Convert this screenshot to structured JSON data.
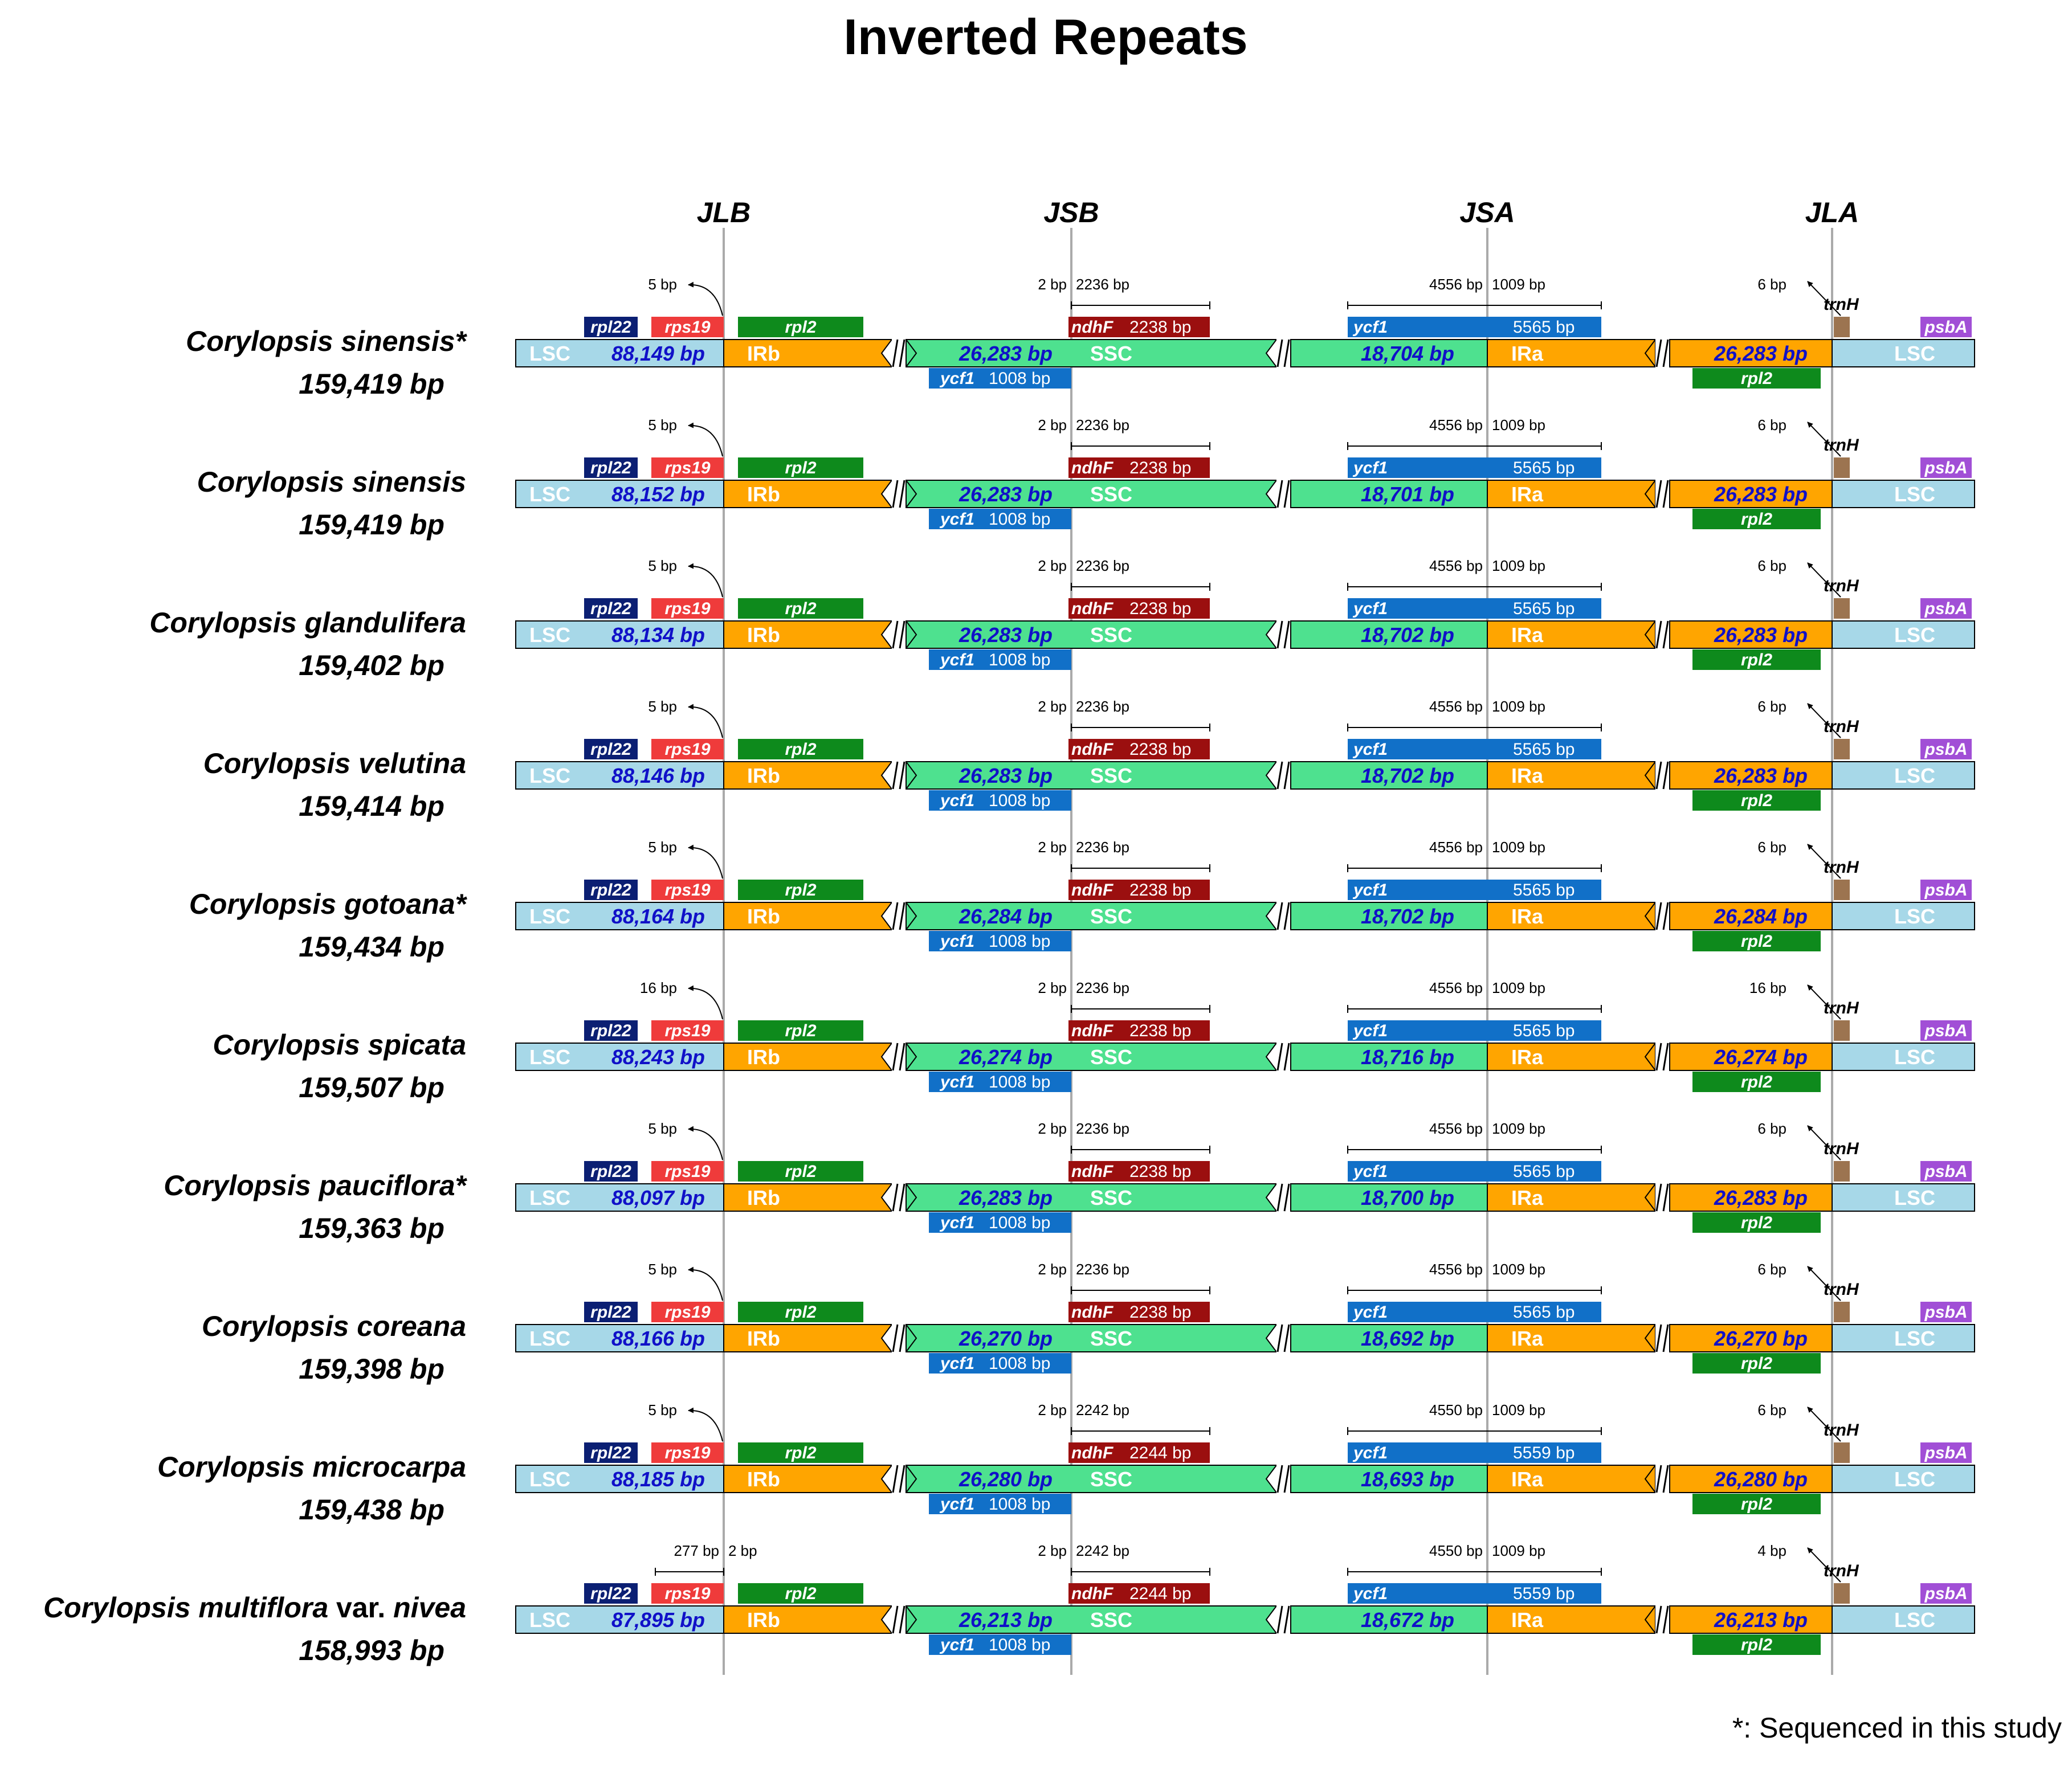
{
  "title": "Inverted Repeats",
  "junctions": [
    "JLB",
    "JSB",
    "JSA",
    "JLA"
  ],
  "region_labels": {
    "lsc": "LSC",
    "irb": "IRb",
    "ssc": "SSC",
    "ira": "IRa"
  },
  "gene_names": {
    "rpl22": "rpl22",
    "rps19": "rps19",
    "rpl2": "rpl2",
    "ndhF": "ndhF",
    "ycf1": "ycf1",
    "trnH": "trnH",
    "psbA": "psbA"
  },
  "colors": {
    "lsc": "#a7d8e8",
    "ir": "#ffa500",
    "ssc": "#4ee18f",
    "rpl22": "#0b1f73",
    "rps19": "#ef3b3b",
    "rpl2": "#0e8a1c",
    "ndhF": "#9b0f0f",
    "ycf1": "#1170c8",
    "trnH": "#9c7450",
    "psbA": "#a14fd6",
    "junction_line": "#aaaaaa",
    "seg_number": "#1010c8"
  },
  "footnote": "*: Sequenced in this study",
  "species": [
    {
      "name": "Corylopsis sinensis*",
      "genome": "159,419 bp",
      "lsc": "88,149 bp",
      "irb": "26,283 bp",
      "ssc": "18,704 bp",
      "ira": "26,283 bp",
      "jlb_left": "5 bp",
      "ndhF_gap": "2 bp",
      "ndhF_over": "2236 bp",
      "ndhF_len": "2238 bp",
      "ycf1_left": "4556 bp",
      "ycf1_right": "1009 bp",
      "ycf1_len": "5565 bp",
      "ycf1_frag": "1008 bp",
      "trnH_dist": "6 bp"
    },
    {
      "name": "Corylopsis sinensis",
      "genome": "159,419 bp",
      "lsc": "88,152 bp",
      "irb": "26,283 bp",
      "ssc": "18,701 bp",
      "ira": "26,283 bp",
      "jlb_left": "5 bp",
      "ndhF_gap": "2 bp",
      "ndhF_over": "2236 bp",
      "ndhF_len": "2238 bp",
      "ycf1_left": "4556 bp",
      "ycf1_right": "1009 bp",
      "ycf1_len": "5565 bp",
      "ycf1_frag": "1008 bp",
      "trnH_dist": "6 bp"
    },
    {
      "name": "Corylopsis glandulifera",
      "genome": "159,402 bp",
      "lsc": "88,134 bp",
      "irb": "26,283 bp",
      "ssc": "18,702 bp",
      "ira": "26,283 bp",
      "jlb_left": "5 bp",
      "ndhF_gap": "2 bp",
      "ndhF_over": "2236 bp",
      "ndhF_len": "2238 bp",
      "ycf1_left": "4556 bp",
      "ycf1_right": "1009 bp",
      "ycf1_len": "5565 bp",
      "ycf1_frag": "1008 bp",
      "trnH_dist": "6 bp"
    },
    {
      "name": "Corylopsis velutina",
      "genome": "159,414 bp",
      "lsc": "88,146 bp",
      "irb": "26,283 bp",
      "ssc": "18,702 bp",
      "ira": "26,283 bp",
      "jlb_left": "5 bp",
      "ndhF_gap": "2 bp",
      "ndhF_over": "2236 bp",
      "ndhF_len": "2238 bp",
      "ycf1_left": "4556 bp",
      "ycf1_right": "1009 bp",
      "ycf1_len": "5565 bp",
      "ycf1_frag": "1008 bp",
      "trnH_dist": "6 bp"
    },
    {
      "name": "Corylopsis gotoana*",
      "genome": "159,434 bp",
      "lsc": "88,164 bp",
      "irb": "26,284 bp",
      "ssc": "18,702 bp",
      "ira": "26,284 bp",
      "jlb_left": "5 bp",
      "ndhF_gap": "2 bp",
      "ndhF_over": "2236 bp",
      "ndhF_len": "2238 bp",
      "ycf1_left": "4556 bp",
      "ycf1_right": "1009 bp",
      "ycf1_len": "5565 bp",
      "ycf1_frag": "1008 bp",
      "trnH_dist": "6 bp"
    },
    {
      "name": "Corylopsis spicata",
      "genome": "159,507 bp",
      "lsc": "88,243 bp",
      "irb": "26,274 bp",
      "ssc": "18,716 bp",
      "ira": "26,274 bp",
      "jlb_left": "16 bp",
      "ndhF_gap": "2 bp",
      "ndhF_over": "2236 bp",
      "ndhF_len": "2238 bp",
      "ycf1_left": "4556 bp",
      "ycf1_right": "1009 bp",
      "ycf1_len": "5565 bp",
      "ycf1_frag": "1008 bp",
      "trnH_dist": "16 bp"
    },
    {
      "name": "Corylopsis pauciflora*",
      "genome": "159,363 bp",
      "lsc": "88,097 bp",
      "irb": "26,283 bp",
      "ssc": "18,700 bp",
      "ira": "26,283 bp",
      "jlb_left": "5 bp",
      "ndhF_gap": "2 bp",
      "ndhF_over": "2236 bp",
      "ndhF_len": "2238 bp",
      "ycf1_left": "4556 bp",
      "ycf1_right": "1009 bp",
      "ycf1_len": "5565 bp",
      "ycf1_frag": "1008 bp",
      "trnH_dist": "6 bp"
    },
    {
      "name": "Corylopsis coreana",
      "genome": "159,398 bp",
      "lsc": "88,166 bp",
      "irb": "26,270 bp",
      "ssc": "18,692 bp",
      "ira": "26,270 bp",
      "jlb_left": "5 bp",
      "ndhF_gap": "2 bp",
      "ndhF_over": "2236 bp",
      "ndhF_len": "2238 bp",
      "ycf1_left": "4556 bp",
      "ycf1_right": "1009 bp",
      "ycf1_len": "5565 bp",
      "ycf1_frag": "1008 bp",
      "trnH_dist": "6 bp"
    },
    {
      "name": "Corylopsis microcarpa",
      "genome": "159,438 bp",
      "lsc": "88,185 bp",
      "irb": "26,280 bp",
      "ssc": "18,693 bp",
      "ira": "26,280 bp",
      "jlb_left": "5 bp",
      "ndhF_gap": "2 bp",
      "ndhF_over": "2242 bp",
      "ndhF_len": "2244 bp",
      "ycf1_left": "4550 bp",
      "ycf1_right": "1009 bp",
      "ycf1_len": "5559 bp",
      "ycf1_frag": "1008 bp",
      "trnH_dist": "6 bp"
    },
    {
      "name": "Corylopsis multiflora",
      "name_suffix": " var. ",
      "name_var": "nivea",
      "genome": "158,993 bp",
      "lsc": "87,895 bp",
      "irb": "26,213 bp",
      "ssc": "18,672 bp",
      "ira": "26,213 bp",
      "jlb_left": "277 bp",
      "jlb_right": "2 bp",
      "ndhF_gap": "2 bp",
      "ndhF_over": "2242 bp",
      "ndhF_len": "2244 bp",
      "ycf1_left": "4550 bp",
      "ycf1_right": "1009 bp",
      "ycf1_len": "5559 bp",
      "ycf1_frag": "1008 bp",
      "trnH_dist": "4 bp"
    }
  ]
}
